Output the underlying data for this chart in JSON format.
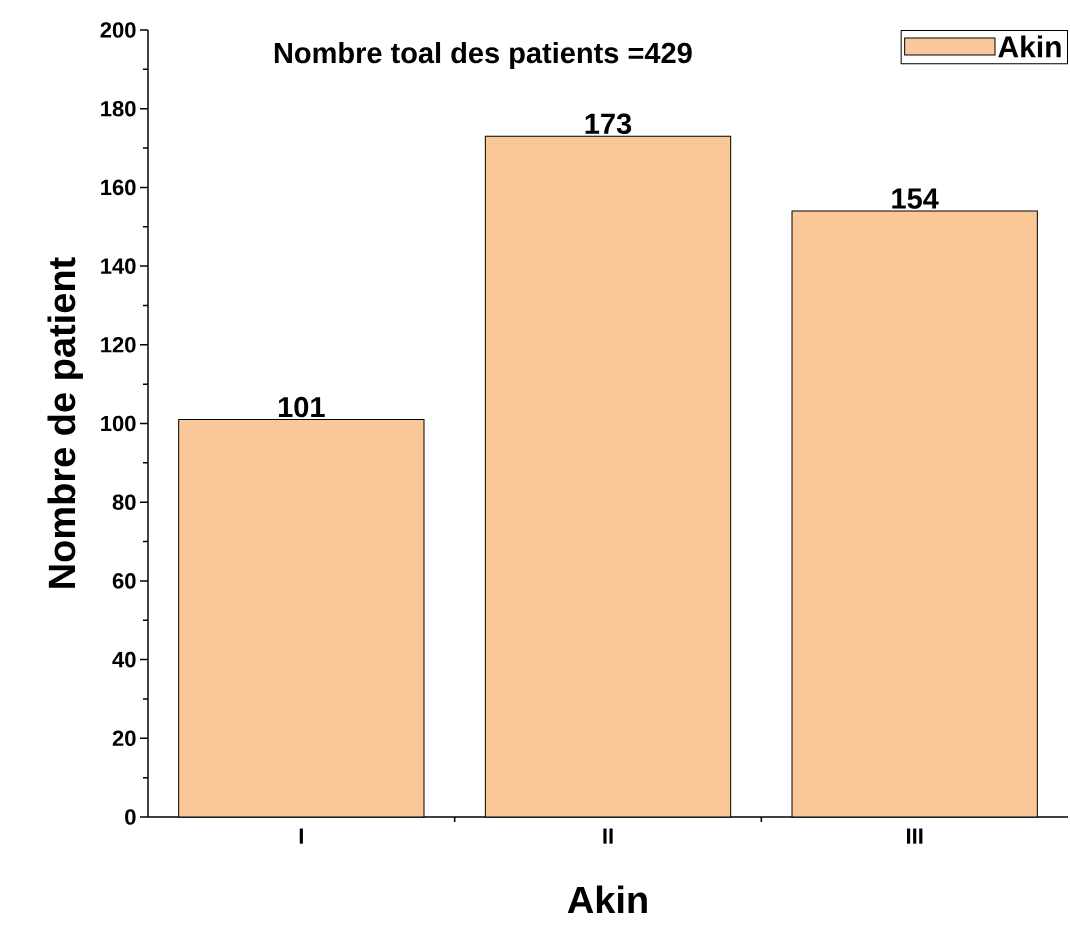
{
  "chart_data": {
    "type": "bar",
    "title": "Nombre toal des patients =429",
    "xlabel": "Akin",
    "ylabel": "Nombre de patient",
    "categories": [
      "I",
      "II",
      "III"
    ],
    "series": [
      {
        "name": "Akin",
        "color": "#fac898",
        "values": [
          101,
          173,
          154
        ]
      }
    ],
    "ylim": [
      0,
      200
    ],
    "yticks": [
      0,
      20,
      40,
      60,
      80,
      100,
      120,
      140,
      160,
      180,
      200
    ],
    "legend": "top right",
    "data_labels": true
  }
}
